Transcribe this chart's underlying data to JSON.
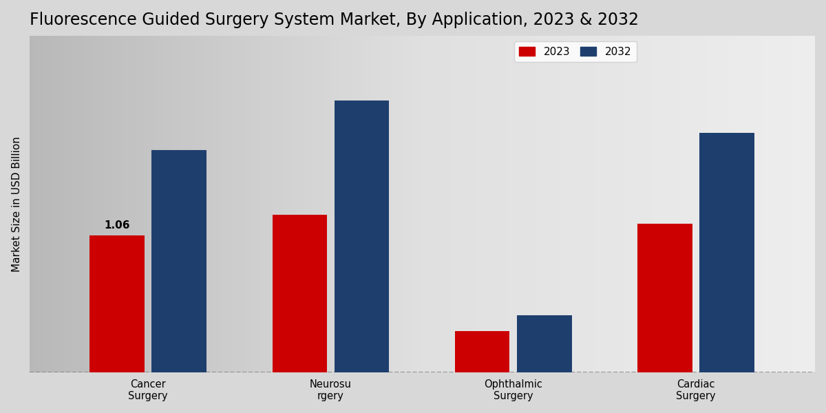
{
  "title": "Fluorescence Guided Surgery System Market, By Application, 2023 & 2032",
  "ylabel": "Market Size in USD Billion",
  "categories": [
    "Cancer\nSurgery",
    "Neurosu\nrgery",
    "Ophthalmic\nSurgery",
    "Cardiac\nSurgery"
  ],
  "values_2023": [
    1.06,
    1.22,
    0.32,
    1.15
  ],
  "values_2032": [
    1.72,
    2.1,
    0.44,
    1.85
  ],
  "color_2023": "#cc0000",
  "color_2032": "#1e3f6e",
  "annotation_label": "1.06",
  "annotation_bar": 0,
  "bar_width": 0.3,
  "ylim": [
    0,
    2.6
  ],
  "legend_labels": [
    "2023",
    "2032"
  ],
  "title_fontsize": 17,
  "label_fontsize": 11,
  "tick_fontsize": 10.5,
  "annotation_fontsize": 11
}
